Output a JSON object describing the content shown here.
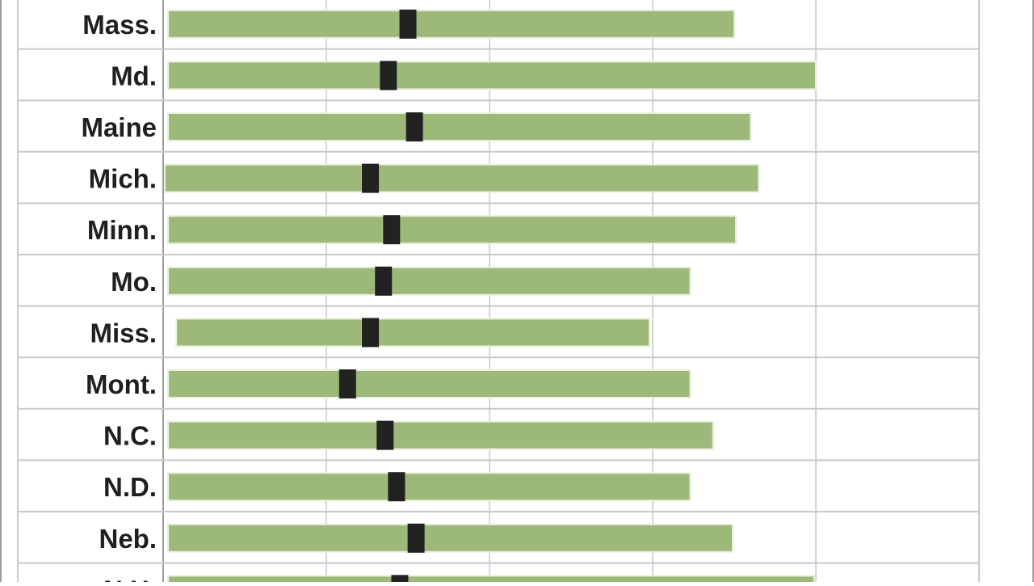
{
  "chart_data": {
    "type": "bar",
    "orientation": "horizontal",
    "categories": [
      "Mass.",
      "Md.",
      "Maine",
      "Mich.",
      "Minn.",
      "Mo.",
      "Miss.",
      "Mont.",
      "N.C.",
      "N.D.",
      "Neb.",
      "N.H."
    ],
    "series": [
      {
        "kind": "range",
        "start": [
          0.03,
          0.03,
          0.03,
          0.01,
          0.03,
          0.03,
          0.08,
          0.03,
          0.03,
          0.03,
          0.03,
          0.03
        ],
        "end": [
          3.5,
          4.0,
          3.6,
          3.65,
          3.51,
          3.23,
          2.98,
          3.23,
          3.37,
          3.23,
          3.49,
          3.99
        ]
      },
      {
        "kind": "marker",
        "values": [
          1.5,
          1.38,
          1.54,
          1.27,
          1.4,
          1.35,
          1.27,
          1.13,
          1.36,
          1.43,
          1.55,
          1.45
        ]
      }
    ],
    "xlim": [
      0,
      5
    ],
    "grid": true,
    "colors": {
      "bar": "#9db97a",
      "bar_edge": "#e8f0dc",
      "marker": "#222222",
      "grid": "#c8c8c8",
      "frame": "#9a9a9a"
    },
    "title": "",
    "xlabel": "",
    "ylabel": ""
  }
}
